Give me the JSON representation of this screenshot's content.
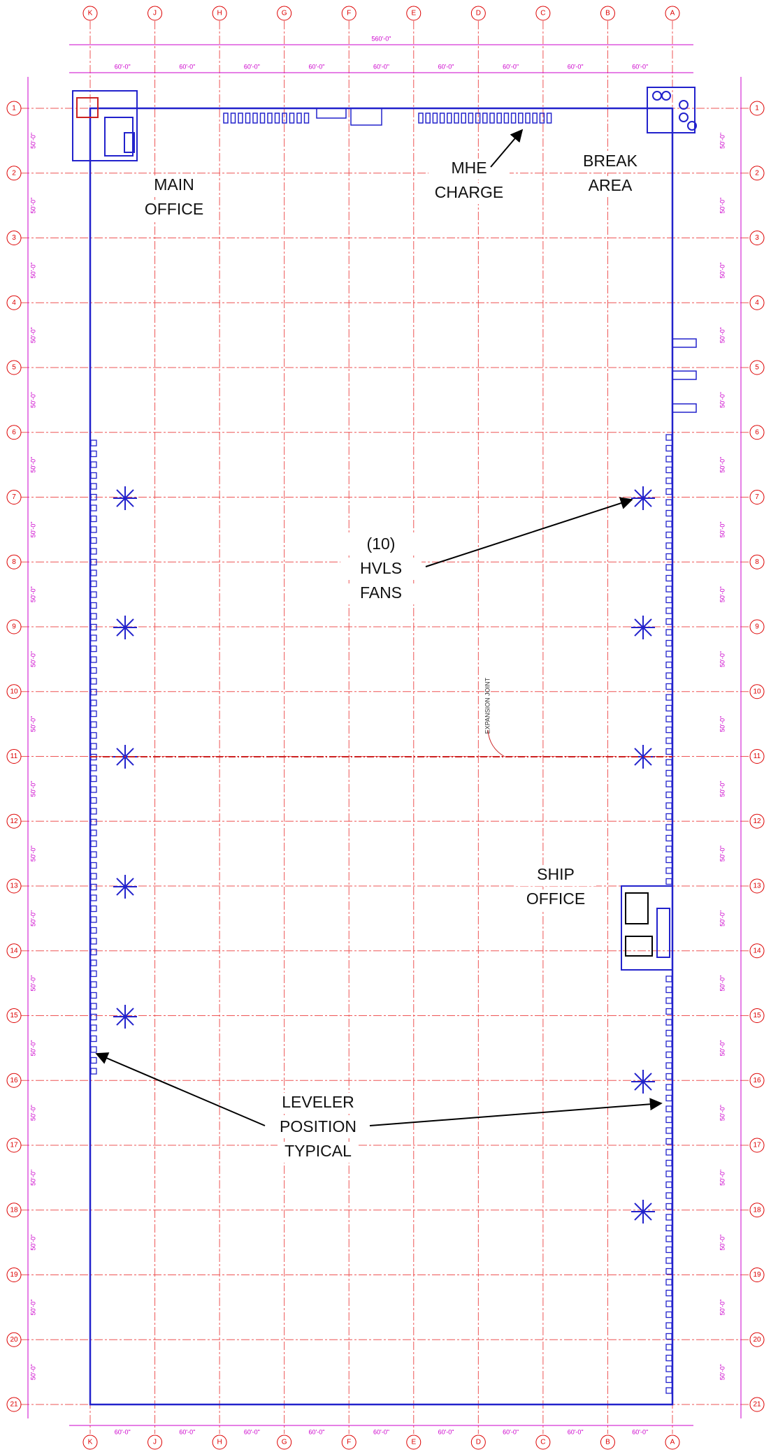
{
  "columns": [
    "K",
    "J",
    "H",
    "G",
    "F",
    "E",
    "D",
    "C",
    "B",
    "A"
  ],
  "rows": [
    "1",
    "2",
    "3",
    "4",
    "5",
    "6",
    "7",
    "8",
    "9",
    "10",
    "11",
    "12",
    "13",
    "14",
    "15",
    "16",
    "17",
    "18",
    "19",
    "20",
    "21"
  ],
  "dimensions": {
    "overall": "560'-0\"",
    "bay": "60'-0\"",
    "row_bay": "50'-0\""
  },
  "labels": {
    "main_office": [
      "MAIN",
      "OFFICE"
    ],
    "mhe_charge": [
      "MHE",
      "CHARGE"
    ],
    "break_area": [
      "BREAK",
      "AREA"
    ],
    "hvls_fans": [
      "(10)",
      "HVLS",
      "FANS"
    ],
    "ship_office": [
      "SHIP",
      "OFFICE"
    ],
    "leveler": [
      "LEVELER",
      "POSITION",
      "TYPICAL"
    ],
    "expansion_joint": "EXPANSION JOINT"
  }
}
